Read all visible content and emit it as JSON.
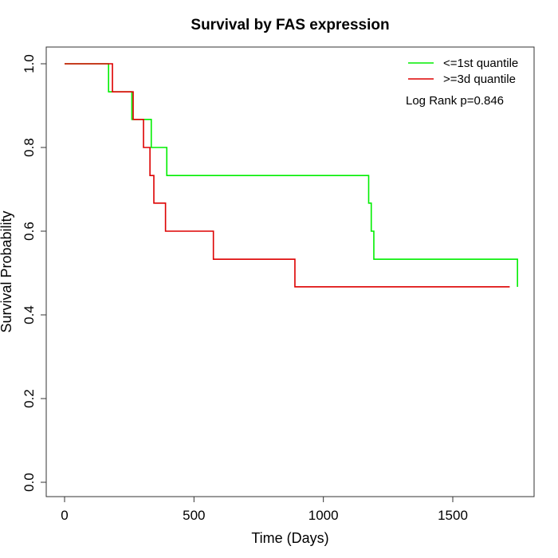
{
  "chart_data": {
    "type": "line",
    "subtype": "kaplan-meier-step",
    "title": "Survival by FAS expression",
    "xlabel": "Time (Days)",
    "ylabel": "Survival Probability",
    "xlim": [
      0,
      1800
    ],
    "ylim": [
      0,
      1.0
    ],
    "xticks": [
      0,
      500,
      1000,
      1500
    ],
    "yticks": [
      0.0,
      0.2,
      0.4,
      0.6,
      0.8,
      1.0
    ],
    "xtick_labels": [
      "0",
      "500",
      "1000",
      "1500"
    ],
    "ytick_labels": [
      "0.0",
      "0.2",
      "0.4",
      "0.6",
      "0.8",
      "1.0"
    ],
    "grid": false,
    "legend_position": "top-right",
    "annotation": "Log Rank p=0.846",
    "series": [
      {
        "name": "<=1st quantile",
        "color": "#00ee00",
        "x": [
          0,
          170,
          260,
          335,
          395,
          1175,
          1185,
          1195,
          1750
        ],
        "y": [
          1.0,
          0.933,
          0.867,
          0.8,
          0.733,
          0.667,
          0.6,
          0.533,
          0.467
        ]
      },
      {
        "name": ">=3d quantile",
        "color": "#dd0000",
        "x": [
          0,
          185,
          265,
          305,
          330,
          345,
          390,
          575,
          890,
          1720
        ],
        "y": [
          1.0,
          0.933,
          0.867,
          0.8,
          0.733,
          0.667,
          0.6,
          0.533,
          0.467,
          0.467
        ]
      }
    ]
  }
}
